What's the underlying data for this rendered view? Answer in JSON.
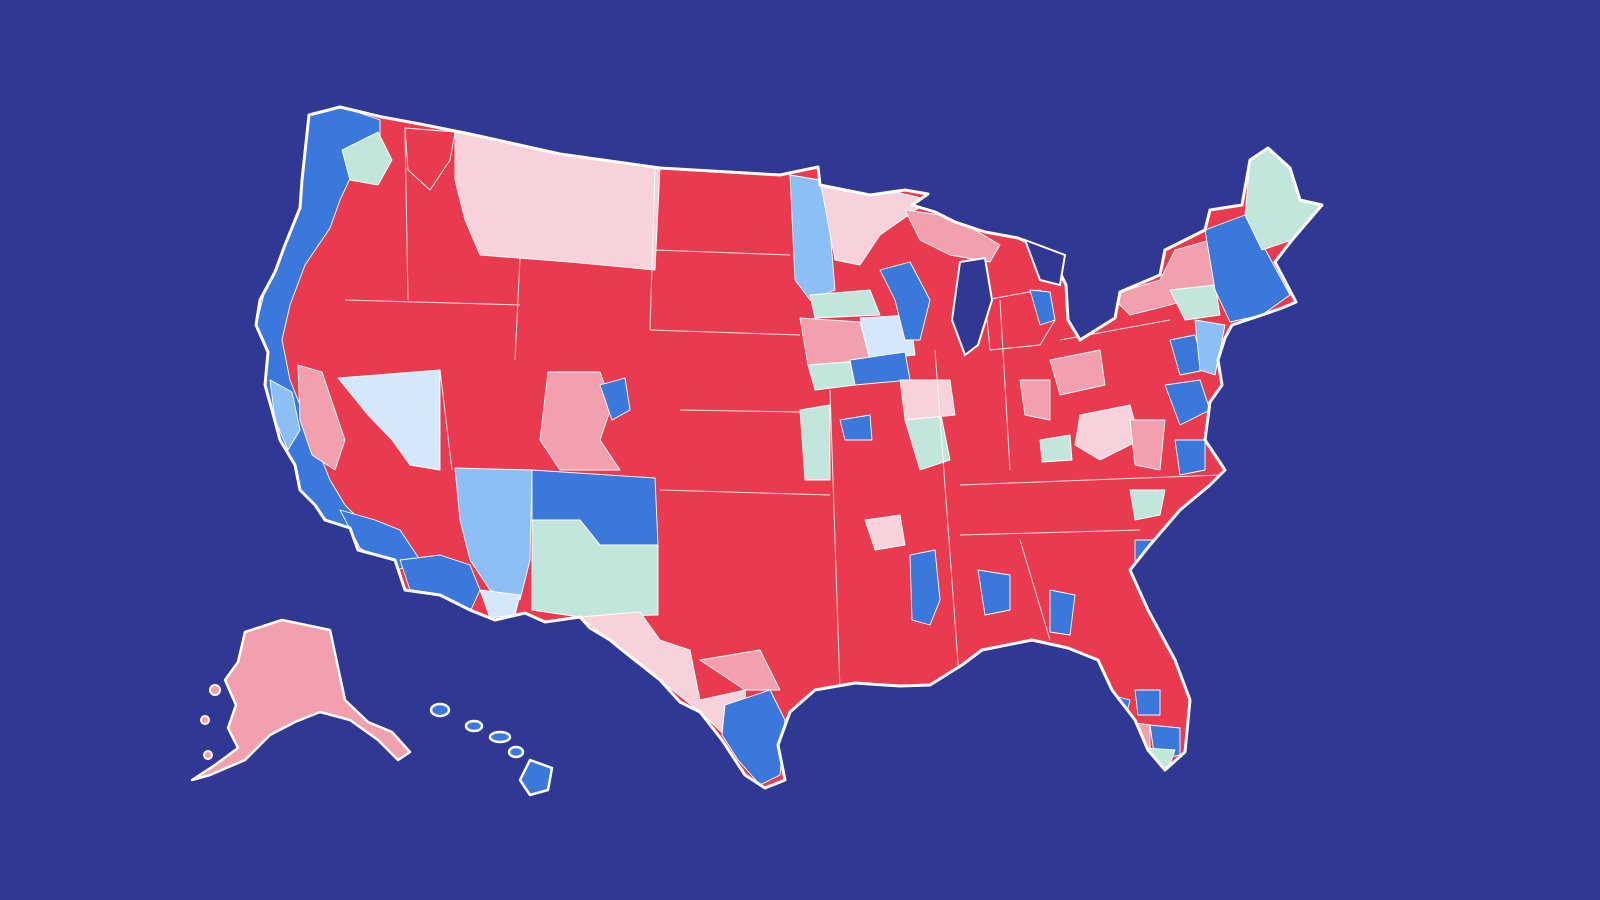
{
  "map": {
    "background_color": "#313893",
    "outline_color": "#ffffff",
    "legend_categories": [
      {
        "key": "solid_r",
        "color": "#ea3a50"
      },
      {
        "key": "likely_r",
        "color": "#f2a0ae"
      },
      {
        "key": "lean_r",
        "color": "#f7d2da"
      },
      {
        "key": "tossup",
        "color": "#c3e6dc"
      },
      {
        "key": "lean_d",
        "color": "#d5e8fb"
      },
      {
        "key": "likely_d",
        "color": "#8bbff6"
      },
      {
        "key": "solid_d",
        "color": "#3b78dc"
      }
    ],
    "regions": [
      {
        "name": "washington-west",
        "category": "solid_d"
      },
      {
        "name": "washington-central",
        "category": "tossup"
      },
      {
        "name": "washington-east",
        "category": "solid_r"
      },
      {
        "name": "oregon-coast",
        "category": "solid_d"
      },
      {
        "name": "oregon-interior",
        "category": "solid_r"
      },
      {
        "name": "california-coast",
        "category": "solid_d"
      },
      {
        "name": "california-interior",
        "category": "solid_r"
      },
      {
        "name": "california-central-valley",
        "category": "likely_r"
      },
      {
        "name": "nevada",
        "category": "lean_d"
      },
      {
        "name": "idaho",
        "category": "solid_r"
      },
      {
        "name": "montana",
        "category": "lean_r"
      },
      {
        "name": "wyoming",
        "category": "solid_r"
      },
      {
        "name": "utah",
        "category": "solid_r"
      },
      {
        "name": "arizona-north",
        "category": "solid_r"
      },
      {
        "name": "arizona-east",
        "category": "likely_d"
      },
      {
        "name": "arizona-south",
        "category": "solid_d"
      },
      {
        "name": "colorado-west",
        "category": "likely_r"
      },
      {
        "name": "colorado-metro",
        "category": "solid_d"
      },
      {
        "name": "colorado-east",
        "category": "solid_r"
      },
      {
        "name": "new-mexico-north",
        "category": "solid_d"
      },
      {
        "name": "new-mexico-south",
        "category": "tossup"
      },
      {
        "name": "north-dakota",
        "category": "solid_r"
      },
      {
        "name": "south-dakota",
        "category": "solid_r"
      },
      {
        "name": "nebraska",
        "category": "solid_r"
      },
      {
        "name": "kansas",
        "category": "solid_r"
      },
      {
        "name": "oklahoma",
        "category": "solid_r"
      },
      {
        "name": "texas-west",
        "category": "lean_r"
      },
      {
        "name": "texas-panhandle",
        "category": "solid_r"
      },
      {
        "name": "texas-east",
        "category": "solid_r"
      },
      {
        "name": "texas-south",
        "category": "solid_d"
      },
      {
        "name": "minnesota-west",
        "category": "likely_d"
      },
      {
        "name": "minnesota-north",
        "category": "lean_r"
      },
      {
        "name": "minnesota-south",
        "category": "tossup"
      },
      {
        "name": "iowa-west",
        "category": "likely_r"
      },
      {
        "name": "iowa-east",
        "category": "lean_d"
      },
      {
        "name": "missouri",
        "category": "solid_r"
      },
      {
        "name": "arkansas",
        "category": "solid_r"
      },
      {
        "name": "louisiana",
        "category": "solid_r"
      },
      {
        "name": "wisconsin",
        "category": "solid_r"
      },
      {
        "name": "wisconsin-east",
        "category": "solid_d"
      },
      {
        "name": "illinois",
        "category": "solid_r"
      },
      {
        "name": "michigan-upper",
        "category": "likely_r"
      },
      {
        "name": "michigan-lower",
        "category": "solid_r"
      },
      {
        "name": "indiana",
        "category": "solid_r"
      },
      {
        "name": "ohio",
        "category": "solid_r"
      },
      {
        "name": "kentucky",
        "category": "solid_r"
      },
      {
        "name": "tennessee",
        "category": "solid_r"
      },
      {
        "name": "mississippi",
        "category": "solid_r"
      },
      {
        "name": "mississippi-delta",
        "category": "solid_d"
      },
      {
        "name": "alabama",
        "category": "solid_r"
      },
      {
        "name": "georgia",
        "category": "solid_r"
      },
      {
        "name": "florida",
        "category": "solid_r"
      },
      {
        "name": "south-carolina",
        "category": "solid_r"
      },
      {
        "name": "north-carolina",
        "category": "solid_r"
      },
      {
        "name": "virginia",
        "category": "solid_r"
      },
      {
        "name": "west-virginia",
        "category": "lean_r"
      },
      {
        "name": "pennsylvania",
        "category": "solid_r"
      },
      {
        "name": "new-york-upstate",
        "category": "likely_r"
      },
      {
        "name": "new-york-east",
        "category": "solid_d"
      },
      {
        "name": "new-england",
        "category": "solid_d"
      },
      {
        "name": "maine",
        "category": "tossup"
      },
      {
        "name": "alaska",
        "category": "likely_r"
      },
      {
        "name": "hawaii",
        "category": "solid_d"
      }
    ]
  }
}
